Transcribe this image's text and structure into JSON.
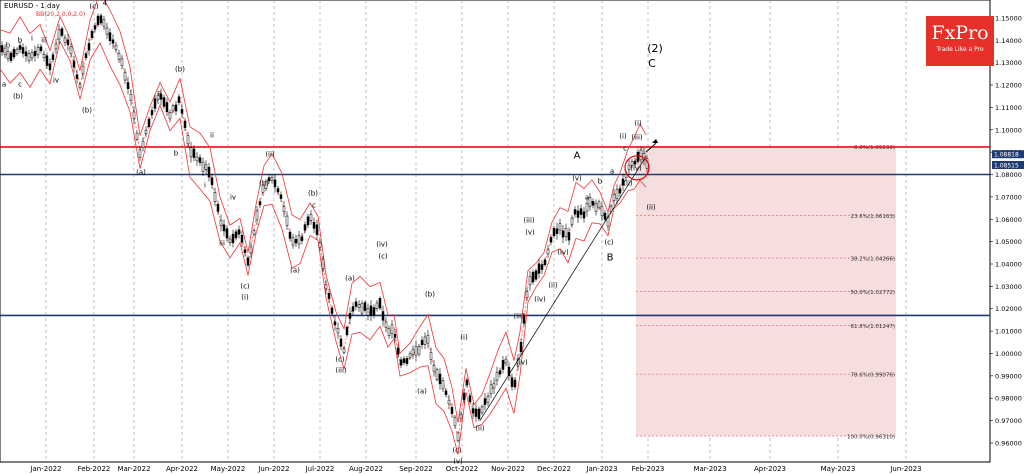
{
  "header": {
    "title": "EURUSD - 1 day",
    "indicator": "BB(20,2.0,0,2.0)"
  },
  "logo": {
    "brand": "FxPro",
    "tagline": "Trade Like a Pro"
  },
  "colors": {
    "up": "#000000",
    "down": "#000000",
    "wave": "#ff0000",
    "support": "#1f3b73",
    "resist": "#e00000",
    "fibZone": "#f6dede",
    "price_box": "#1f3b73"
  },
  "chart_data": {
    "type": "candlestick",
    "ylim": [
      0.9515,
      1.158
    ],
    "yticks": [
      "1.15000",
      "1.14000",
      "1.13000",
      "1.12000",
      "1.11000",
      "1.10000",
      "1.09000",
      "1.08000",
      "1.07000",
      "1.06000",
      "1.05000",
      "1.04000",
      "1.03000",
      "1.02000",
      "1.01000",
      "1.00000",
      "0.99000",
      "0.98000",
      "0.97000",
      "0.96000"
    ],
    "xticks": [
      "Jan-2022",
      "Feb-2022",
      "Mar-2022",
      "Apr-2022",
      "May-2022",
      "Jun-2022",
      "Jul-2022",
      "Aug-2022",
      "Sep-2022",
      "Oct-2022",
      "Nov-2022",
      "Dec-2022",
      "Jan-2023",
      "Feb-2023",
      "Mar-2023",
      "Apr-2023",
      "May-2023",
      "Jun-2023"
    ],
    "price_boxes": [
      {
        "text": "1.08818",
        "value": 1.08818
      },
      {
        "text": "1.08515",
        "value": 1.08515
      }
    ],
    "horizontal_lines": [
      {
        "value": 1.0923,
        "color": "red"
      },
      {
        "value": 1.08,
        "color": "navy"
      },
      {
        "value": 1.017,
        "color": "navy"
      }
    ],
    "fib_levels": [
      {
        "label": "0.0%(1.09233)",
        "value": 1.09233
      },
      {
        "label": "23.6%(1.06163)",
        "value": 1.06163
      },
      {
        "label": "38.2%(1.04266)",
        "value": 1.04266
      },
      {
        "label": "50.0%(1.02772)",
        "value": 1.02772
      },
      {
        "label": "61.8%(1.01247)",
        "value": 1.01247
      },
      {
        "label": "78.6%(0.99076)",
        "value": 0.99076
      },
      {
        "label": "100.0%(0.96310)",
        "value": 0.9631
      }
    ],
    "path": [
      [
        0,
        1.136
      ],
      [
        10,
        1.132
      ],
      [
        20,
        1.138
      ],
      [
        30,
        1.131
      ],
      [
        40,
        1.137
      ],
      [
        50,
        1.128
      ],
      [
        60,
        1.145
      ],
      [
        70,
        1.136
      ],
      [
        80,
        1.12
      ],
      [
        90,
        1.14
      ],
      [
        100,
        1.15
      ],
      [
        110,
        1.141
      ],
      [
        120,
        1.132
      ],
      [
        130,
        1.118
      ],
      [
        140,
        1.09
      ],
      [
        150,
        1.105
      ],
      [
        160,
        1.116
      ],
      [
        170,
        1.106
      ],
      [
        180,
        1.114
      ],
      [
        190,
        1.09
      ],
      [
        200,
        1.086
      ],
      [
        210,
        1.08
      ],
      [
        220,
        1.06
      ],
      [
        230,
        1.05
      ],
      [
        240,
        1.055
      ],
      [
        248,
        1.04
      ],
      [
        256,
        1.06
      ],
      [
        264,
        1.075
      ],
      [
        272,
        1.078
      ],
      [
        282,
        1.068
      ],
      [
        292,
        1.05
      ],
      [
        300,
        1.05
      ],
      [
        310,
        1.06
      ],
      [
        318,
        1.056
      ],
      [
        326,
        1.03
      ],
      [
        336,
        1.012
      ],
      [
        344,
        1.002
      ],
      [
        352,
        1.02
      ],
      [
        360,
        1.022
      ],
      [
        370,
        1.018
      ],
      [
        380,
        1.022
      ],
      [
        388,
        1.01
      ],
      [
        394,
        1.012
      ],
      [
        400,
        0.995
      ],
      [
        410,
        0.998
      ],
      [
        420,
        1.003
      ],
      [
        428,
        1.006
      ],
      [
        436,
        0.99
      ],
      [
        444,
        0.986
      ],
      [
        452,
        0.975
      ],
      [
        458,
        0.962
      ],
      [
        466,
        0.988
      ],
      [
        474,
        0.972
      ],
      [
        482,
        0.975
      ],
      [
        490,
        0.982
      ],
      [
        498,
        0.99
      ],
      [
        506,
        0.997
      ],
      [
        514,
        0.985
      ],
      [
        520,
        1.0
      ],
      [
        528,
        1.03
      ],
      [
        536,
        1.035
      ],
      [
        544,
        1.04
      ],
      [
        552,
        1.052
      ],
      [
        560,
        1.056
      ],
      [
        568,
        1.052
      ],
      [
        576,
        1.064
      ],
      [
        584,
        1.062
      ],
      [
        592,
        1.068
      ],
      [
        600,
        1.065
      ],
      [
        608,
        1.058
      ],
      [
        614,
        1.07
      ],
      [
        620,
        1.074
      ],
      [
        628,
        1.082
      ],
      [
        634,
        1.085
      ],
      [
        640,
        1.09
      ],
      [
        646,
        1.086
      ]
    ],
    "annotations": [
      {
        "t": "(2)",
        "x": 655,
        "y": 48,
        "size": 11
      },
      {
        "t": "C",
        "x": 652,
        "y": 63,
        "size": 11
      },
      {
        "t": "A",
        "x": 577,
        "y": 155,
        "size": 10
      },
      {
        "t": "B",
        "x": 610,
        "y": 257,
        "size": 10
      },
      {
        "t": "(c)",
        "x": 94,
        "y": 6,
        "size": 7
      },
      {
        "t": "4",
        "x": 105,
        "y": 3,
        "size": 7
      },
      {
        "t": "b",
        "x": 8,
        "y": 45,
        "size": 7
      },
      {
        "t": "b",
        "x": 20,
        "y": 40,
        "size": 7
      },
      {
        "t": "i",
        "x": 32,
        "y": 38,
        "size": 7
      },
      {
        "t": "iii",
        "x": 44,
        "y": 40,
        "size": 7
      },
      {
        "t": "a",
        "x": 4,
        "y": 84,
        "size": 7
      },
      {
        "t": "c",
        "x": 20,
        "y": 84,
        "size": 7
      },
      {
        "t": "(b)",
        "x": 18,
        "y": 96,
        "size": 7
      },
      {
        "t": "iv",
        "x": 56,
        "y": 80,
        "size": 7
      },
      {
        "t": "(b)",
        "x": 87,
        "y": 110,
        "size": 7
      },
      {
        "t": "(b)",
        "x": 180,
        "y": 69,
        "size": 7
      },
      {
        "t": "a",
        "x": 160,
        "y": 93,
        "size": 7
      },
      {
        "t": "b",
        "x": 176,
        "y": 153,
        "size": 7
      },
      {
        "t": "ii",
        "x": 212,
        "y": 135,
        "size": 7
      },
      {
        "t": "(a)",
        "x": 141,
        "y": 172,
        "size": 7
      },
      {
        "t": "i",
        "x": 205,
        "y": 185,
        "size": 7
      },
      {
        "t": "iv",
        "x": 233,
        "y": 197,
        "size": 7
      },
      {
        "t": "iii",
        "x": 222,
        "y": 243,
        "size": 7
      },
      {
        "t": "(ii)",
        "x": 270,
        "y": 154,
        "size": 7
      },
      {
        "t": "(b)",
        "x": 264,
        "y": 183,
        "size": 7
      },
      {
        "t": "(c)",
        "x": 245,
        "y": 286,
        "size": 7
      },
      {
        "t": "(i)",
        "x": 245,
        "y": 297,
        "size": 7
      },
      {
        "t": "(b)",
        "x": 313,
        "y": 193,
        "size": 7
      },
      {
        "t": "c",
        "x": 314,
        "y": 205,
        "size": 7
      },
      {
        "t": "(a)",
        "x": 295,
        "y": 270,
        "size": 7
      },
      {
        "t": "(iv)",
        "x": 382,
        "y": 244,
        "size": 7
      },
      {
        "t": "(c)",
        "x": 383,
        "y": 256,
        "size": 7
      },
      {
        "t": "(a)",
        "x": 350,
        "y": 278,
        "size": 7
      },
      {
        "t": "(b)",
        "x": 430,
        "y": 294,
        "size": 7
      },
      {
        "t": "(c)",
        "x": 340,
        "y": 359,
        "size": 7
      },
      {
        "t": "(iii)",
        "x": 341,
        "y": 370,
        "size": 7
      },
      {
        "t": "(a)",
        "x": 422,
        "y": 391,
        "size": 7
      },
      {
        "t": "(c)",
        "x": 457,
        "y": 450,
        "size": 7
      },
      {
        "t": "(v)",
        "x": 458,
        "y": 461,
        "size": 7
      },
      {
        "t": "(i)",
        "x": 464,
        "y": 337,
        "size": 7
      },
      {
        "t": "(ii)",
        "x": 480,
        "y": 428,
        "size": 7
      },
      {
        "t": "(iii)",
        "x": 519,
        "y": 316,
        "size": 7
      },
      {
        "t": "(iv)",
        "x": 522,
        "y": 362,
        "size": 7
      },
      {
        "t": "(iii)",
        "x": 529,
        "y": 220,
        "size": 7
      },
      {
        "t": "(v)",
        "x": 530,
        "y": 232,
        "size": 7
      },
      {
        "t": "(iv)",
        "x": 563,
        "y": 252,
        "size": 7
      },
      {
        "t": "(ii)",
        "x": 553,
        "y": 285,
        "size": 7
      },
      {
        "t": "(iv)",
        "x": 540,
        "y": 299,
        "size": 7
      },
      {
        "t": "(v)",
        "x": 577,
        "y": 178,
        "size": 7
      },
      {
        "t": "b",
        "x": 600,
        "y": 181,
        "size": 7
      },
      {
        "t": "a",
        "x": 587,
        "y": 197,
        "size": 7
      },
      {
        "t": "(c)",
        "x": 609,
        "y": 242,
        "size": 7
      },
      {
        "t": "(i)",
        "x": 638,
        "y": 123,
        "size": 7
      },
      {
        "t": "(i)",
        "x": 623,
        "y": 136,
        "size": 7
      },
      {
        "t": "(iii)",
        "x": 637,
        "y": 137,
        "size": 7
      },
      {
        "t": "c",
        "x": 625,
        "y": 148,
        "size": 7
      },
      {
        "t": "(iv)",
        "x": 636,
        "y": 168,
        "size": 7
      },
      {
        "t": "(ii)",
        "x": 628,
        "y": 183,
        "size": 7
      },
      {
        "t": "(ii)",
        "x": 651,
        "y": 207,
        "size": 7
      },
      {
        "t": "a",
        "x": 612,
        "y": 171,
        "size": 7
      }
    ]
  }
}
